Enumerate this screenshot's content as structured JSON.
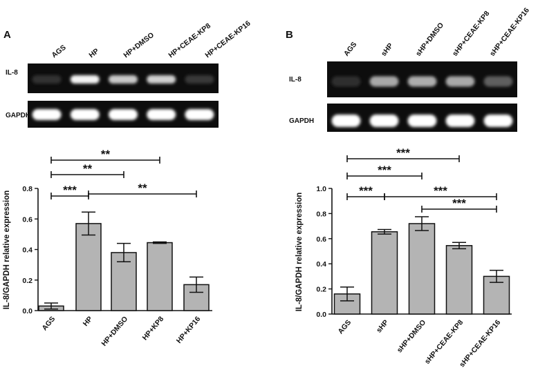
{
  "panels": [
    {
      "letter": "A",
      "gel_lanes": [
        "AGS",
        "HP",
        "HP+DMSO",
        "HP+CEAE-KP8",
        "HP+CEAE-KP16"
      ],
      "gel_rows": [
        {
          "label": "IL-8",
          "intensity": [
            0.05,
            0.95,
            0.75,
            0.78,
            0.08
          ]
        },
        {
          "label": "GAPDH",
          "intensity": [
            1,
            1,
            1,
            1,
            1
          ]
        }
      ],
      "chart_data": {
        "type": "bar",
        "title": "",
        "ylabel": "IL-8/GAPDH relative expression",
        "categories": [
          "AGS",
          "HP",
          "HP+DMSO",
          "HP+KP8",
          "HP+KP16"
        ],
        "values": [
          0.03,
          0.57,
          0.38,
          0.445,
          0.17
        ],
        "errors": [
          0.02,
          0.075,
          0.06,
          0.005,
          0.05
        ],
        "ylim": [
          0,
          0.8
        ],
        "yticks": [
          "0.0",
          "0.2",
          "0.4",
          "0.6",
          "0.8"
        ],
        "significance": [
          {
            "from": 0,
            "to": 1,
            "label": "***"
          },
          {
            "from": 0,
            "to": 2,
            "label": "**"
          },
          {
            "from": 0,
            "to": 3,
            "label": "**"
          },
          {
            "from": 1,
            "to": 4,
            "label": "**"
          }
        ]
      }
    },
    {
      "letter": "B",
      "gel_lanes": [
        "AGS",
        "sHP",
        "sHP+DMSO",
        "sHP+CEAE-KP8",
        "sHP+CEAE-KP16"
      ],
      "gel_rows": [
        {
          "label": "IL-8",
          "intensity": [
            0.03,
            0.6,
            0.62,
            0.6,
            0.25
          ]
        },
        {
          "label": "GAPDH",
          "intensity": [
            1,
            1,
            1,
            1,
            1
          ]
        }
      ],
      "chart_data": {
        "type": "bar",
        "title": "",
        "ylabel": "IL-8/GAPDH relative expression",
        "categories": [
          "AGS",
          "sHP",
          "sHP+DMSO",
          "sHP+CEAE-KP8",
          "sHP+CEAE-KP16"
        ],
        "values": [
          0.16,
          0.655,
          0.72,
          0.545,
          0.3
        ],
        "errors": [
          0.055,
          0.018,
          0.055,
          0.025,
          0.048
        ],
        "ylim": [
          0,
          1.0
        ],
        "yticks": [
          "0.0",
          "0.2",
          "0.4",
          "0.6",
          "0.8",
          "1.0"
        ],
        "significance": [
          {
            "from": 0,
            "to": 1,
            "label": "***"
          },
          {
            "from": 0,
            "to": 2,
            "label": "***"
          },
          {
            "from": 0,
            "to": 3,
            "label": "***"
          },
          {
            "from": 1,
            "to": 4,
            "label": "***"
          },
          {
            "from": 2,
            "to": 4,
            "label": "***"
          }
        ]
      }
    }
  ]
}
